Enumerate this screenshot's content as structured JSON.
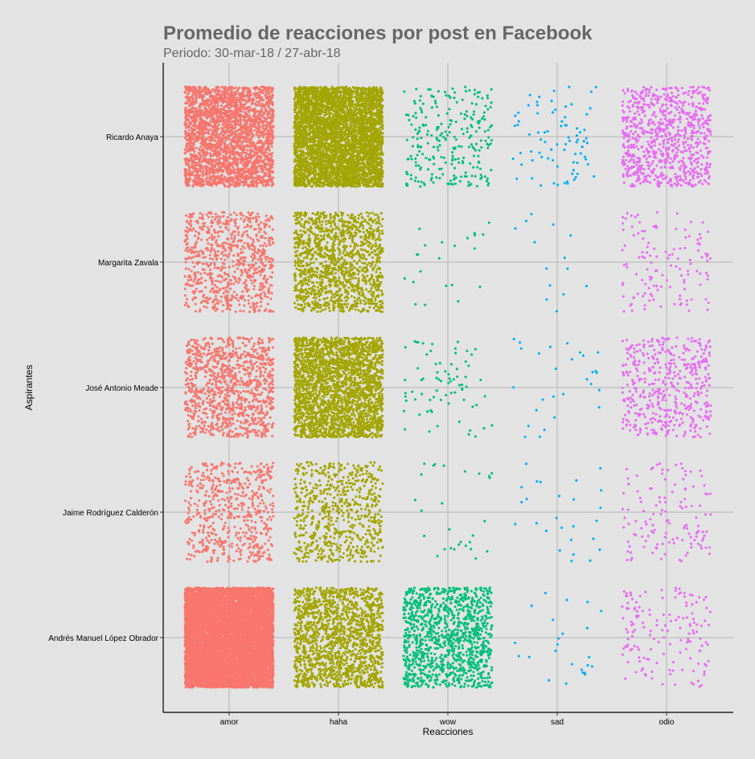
{
  "chart_data": {
    "type": "scatter",
    "title": "Promedio de reacciones por post en Facebook",
    "subtitle": "Periodo: 30-mar-18 / 27-abr-18",
    "xlabel": "Reacciones",
    "ylabel": "Aspirantes",
    "categories_x": [
      "amor",
      "haha",
      "wow",
      "sad",
      "odio"
    ],
    "categories_y": [
      "Ricardo Anaya",
      "Margarita Zavala",
      "José Antonio Meade",
      "Jaime Rodríguez Calderón",
      "Andrés Manuel López Obrador"
    ],
    "grid": true,
    "legend": "none",
    "colors": {
      "amor": "#F8766D",
      "haha": "#A3A500",
      "wow": "#00BF7D",
      "sad": "#00B0F6",
      "odio": "#E76BF3"
    },
    "jittered_point_counts": [
      {
        "aspirante": "Ricardo Anaya",
        "amor": 2600,
        "haha": 4200,
        "wow": 260,
        "sad": 80,
        "odio": 820
      },
      {
        "aspirante": "Margarita Zavala",
        "amor": 780,
        "haha": 1300,
        "wow": 22,
        "sad": 14,
        "odio": 130
      },
      {
        "aspirante": "José Antonio Meade",
        "amor": 1000,
        "haha": 2400,
        "wow": 75,
        "sad": 28,
        "odio": 480
      },
      {
        "aspirante": "Jaime Rodríguez Calderón",
        "amor": 560,
        "haha": 650,
        "wow": 28,
        "sad": 26,
        "odio": 130
      },
      {
        "aspirante": "Andrés Manuel López Obrador",
        "amor": 9000,
        "haha": 1500,
        "wow": 1150,
        "sad": 24,
        "odio": 150
      }
    ]
  }
}
